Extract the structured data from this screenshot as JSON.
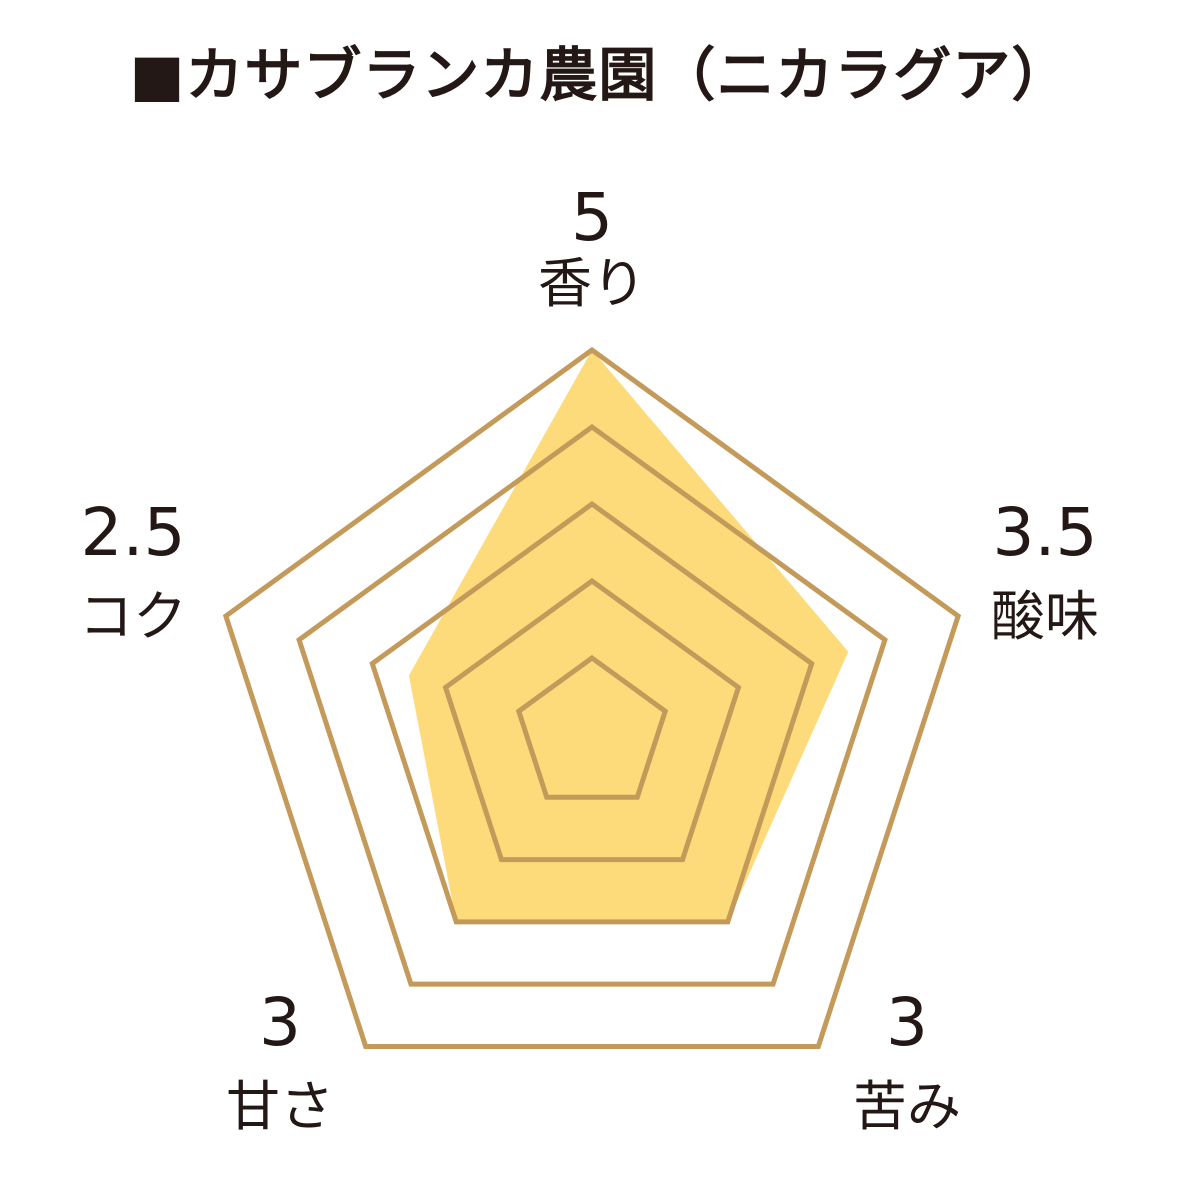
{
  "chart_data": {
    "type": "radar",
    "title": "■カサブランカ農園（ニカラグア）",
    "categories": [
      "香り",
      "酸味",
      "苦み",
      "甘さ",
      "コク"
    ],
    "values": [
      5,
      3.5,
      3,
      3,
      2.5
    ],
    "value_labels": [
      "5",
      "3.5",
      "3",
      "3",
      "2.5"
    ],
    "rlim": [
      0,
      5
    ],
    "grid_levels": [
      1,
      2,
      3,
      4,
      5
    ],
    "colors": {
      "fill": "#FDDB7B",
      "grid": "#C49A5A",
      "text": "#231815"
    }
  }
}
